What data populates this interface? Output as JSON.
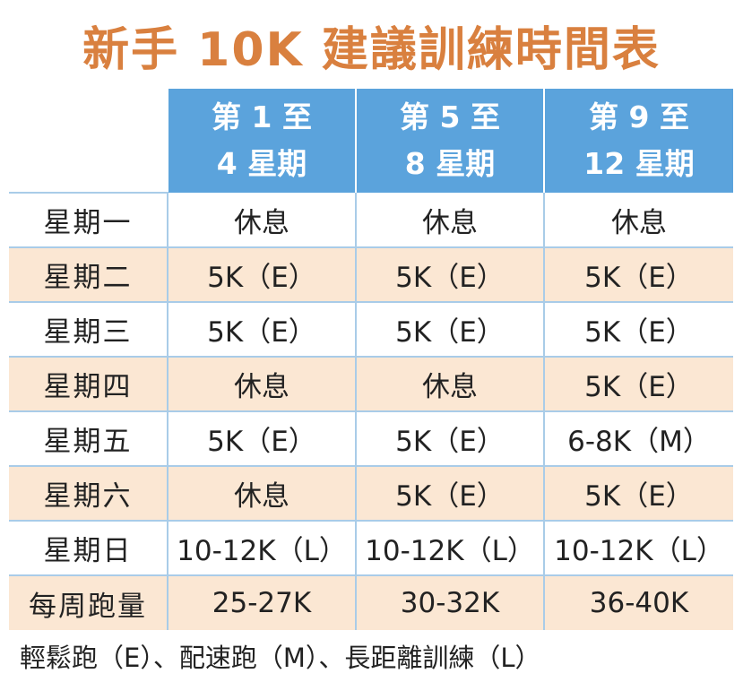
{
  "title": "新手 10K 建議訓練時間表",
  "columns": [
    {
      "line1": "第 1 至",
      "line2": "4 星期"
    },
    {
      "line1": "第 5 至",
      "line2": "8 星期"
    },
    {
      "line1": "第 9 至",
      "line2": "12 星期"
    }
  ],
  "rows": [
    {
      "day": "星期一",
      "cells": [
        "休息",
        "休息",
        "休息"
      ]
    },
    {
      "day": "星期二",
      "cells": [
        "5K（E）",
        "5K（E）",
        "5K（E）"
      ]
    },
    {
      "day": "星期三",
      "cells": [
        "5K（E）",
        "5K（E）",
        "5K（E）"
      ]
    },
    {
      "day": "星期四",
      "cells": [
        "休息",
        "休息",
        "5K（E）"
      ]
    },
    {
      "day": "星期五",
      "cells": [
        "5K（E）",
        "5K（E）",
        "6-8K（M）"
      ]
    },
    {
      "day": "星期六",
      "cells": [
        "休息",
        "5K（E）",
        "5K（E）"
      ]
    },
    {
      "day": "星期日",
      "cells": [
        "10-12K（L）",
        "10-12K（L）",
        "10-12K（L）"
      ]
    },
    {
      "day": "每周跑量",
      "cells": [
        "25-27K",
        "30-32K",
        "36-40K"
      ]
    }
  ],
  "footnote": "輕鬆跑（E）、配速跑（M）、長距離訓練（L）",
  "colors": {
    "title": "#d9803f",
    "header_bg": "#5ba3dc",
    "shaded_row_bg": "#fbe7d3",
    "grid_line": "#a9cce8"
  }
}
